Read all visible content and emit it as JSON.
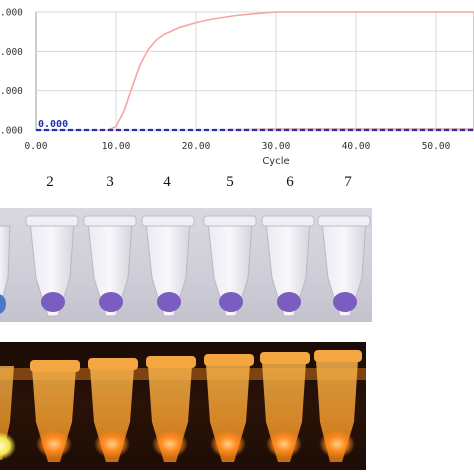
{
  "chart_data": {
    "type": "line",
    "xlabel": "Cycle",
    "x_ticks": [
      "0.00",
      "10.00",
      "20.00",
      "30.00",
      "40.00",
      "50.00"
    ],
    "y_ticks": [
      ".000",
      ".000",
      ".000",
      ".000"
    ],
    "xlim": [
      0,
      55
    ],
    "ylim": [
      0,
      1
    ],
    "threshold_label": "0.000",
    "grid": true,
    "series": [
      {
        "color": "#f4a6a6",
        "x": [
          0,
          5,
          9,
          10,
          11,
          12,
          13,
          14,
          15,
          16,
          18,
          20,
          22,
          25,
          28,
          30,
          35,
          40,
          45,
          50,
          55
        ],
        "y": [
          0.0,
          0.0,
          0.0,
          0.03,
          0.16,
          0.36,
          0.55,
          0.68,
          0.76,
          0.81,
          0.87,
          0.91,
          0.94,
          0.97,
          0.99,
          1.0,
          1.0,
          1.0,
          1.0,
          1.0,
          1.0
        ]
      },
      {
        "color": "#f0b8b8",
        "x": [
          0,
          10,
          20,
          30,
          40,
          50,
          55
        ],
        "y": [
          0.0,
          0.0,
          0.0,
          0.01,
          0.01,
          0.01,
          0.01
        ]
      },
      {
        "color": "#2233aa",
        "x": [
          0,
          10,
          20,
          30,
          40,
          50,
          55
        ],
        "y": [
          0.0,
          0.0,
          0.0,
          0.0,
          0.0,
          0.0,
          0.0
        ]
      }
    ]
  },
  "lanes": [
    "2",
    "3",
    "4",
    "5",
    "6",
    "7"
  ],
  "colors": {
    "amplification_curve": "#f4a6a6",
    "baseline": "#2233aa",
    "blue_liquid": "#4a78c8",
    "violet_liquid": "#7b5cc0",
    "orange_glow": "#ff8a1e",
    "yellow_glow": "#f2e64a"
  }
}
